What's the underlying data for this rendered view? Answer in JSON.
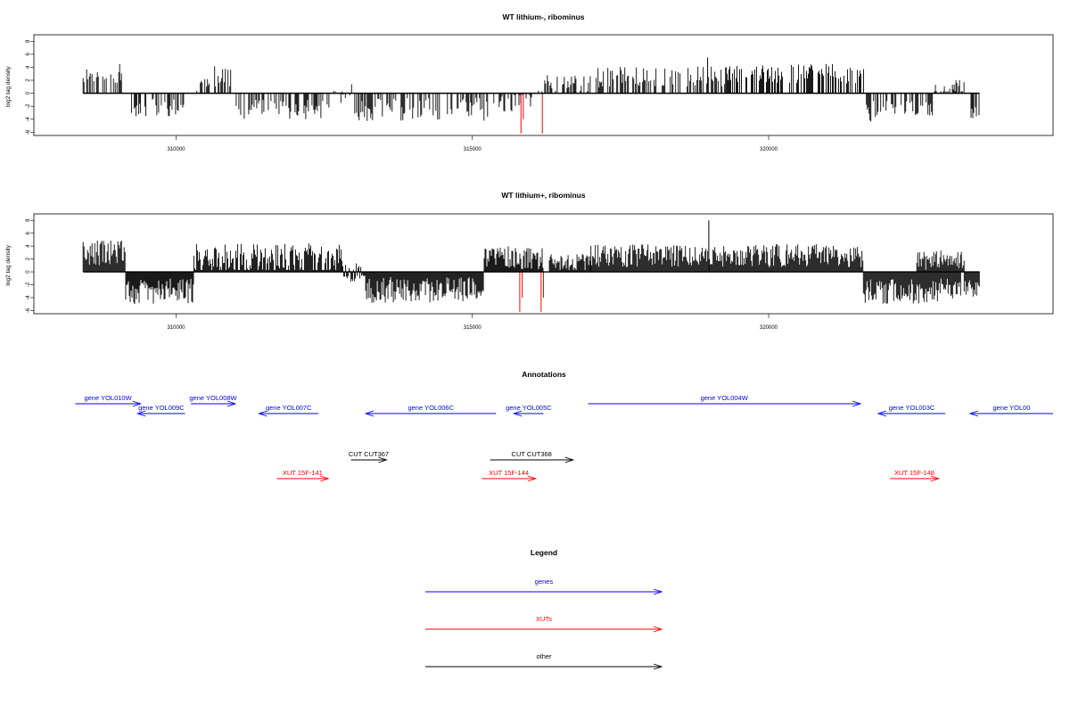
{
  "chart_data": [
    {
      "type": "bar",
      "title": "WT lithium-, ribominus",
      "xlabel": "",
      "ylabel": "log2 tag density",
      "xlim": [
        307600,
        324800
      ],
      "ylim": [
        -6.5,
        9
      ],
      "xticks": [
        310000,
        315000,
        320000
      ],
      "yticks": [
        -6,
        -4,
        -2,
        0,
        2,
        4,
        6,
        8
      ],
      "seed": 11,
      "density": 0.5,
      "segments": [
        {
          "from": 308430,
          "to": 309080,
          "mean": 3.0,
          "amp": 1.5
        },
        {
          "from": 309250,
          "to": 309500,
          "mean": -2.5,
          "amp": 1.5
        },
        {
          "from": 309600,
          "to": 310200,
          "mean": -2.2,
          "amp": 1.5
        },
        {
          "from": 310350,
          "to": 310600,
          "mean": 1.2,
          "amp": 1.0
        },
        {
          "from": 310650,
          "to": 311000,
          "mean": 3.0,
          "amp": 2.0
        },
        {
          "from": 311000,
          "to": 312600,
          "mean": -2.5,
          "amp": 1.5
        },
        {
          "from": 312600,
          "to": 313000,
          "mean": 0.0,
          "amp": 1.5
        },
        {
          "from": 313000,
          "to": 315500,
          "mean": -2.5,
          "amp": 1.8
        },
        {
          "from": 315500,
          "to": 316000,
          "mean": -1.5,
          "amp": 1.5
        },
        {
          "from": 316100,
          "to": 317000,
          "mean": 1.5,
          "amp": 1.5
        },
        {
          "from": 317000,
          "to": 319300,
          "mean": 2.5,
          "amp": 1.6
        },
        {
          "from": 319300,
          "to": 321650,
          "mean": 3.0,
          "amp": 1.5
        },
        {
          "from": 321650,
          "to": 322800,
          "mean": -2.8,
          "amp": 1.6
        },
        {
          "from": 322800,
          "to": 323300,
          "mean": 0.8,
          "amp": 1.3
        },
        {
          "from": 323400,
          "to": 323560,
          "mean": -3.0,
          "amp": 1.0
        }
      ],
      "highlights": [
        {
          "x": 315820,
          "y": -6.2,
          "color": "#ff0000"
        },
        {
          "x": 315860,
          "y": -4.0,
          "color": "#ff0000"
        },
        {
          "x": 316180,
          "y": -6.2,
          "color": "#ff0000"
        },
        {
          "x": 318970,
          "y": 5.5,
          "color": "#000000"
        }
      ]
    },
    {
      "type": "bar",
      "title": "WT lithium+, ribominus",
      "xlabel": "",
      "ylabel": "log2 tag density",
      "xlim": [
        307600,
        324800
      ],
      "ylim": [
        -6.5,
        9
      ],
      "xticks": [
        310000,
        315000,
        320000
      ],
      "yticks": [
        -6,
        -4,
        -2,
        0,
        2,
        4,
        6,
        8
      ],
      "seed": 29,
      "density": 1.0,
      "segments": [
        {
          "from": 308430,
          "to": 309150,
          "mean": 3.0,
          "amp": 2.0
        },
        {
          "from": 309150,
          "to": 310300,
          "mean": -3.0,
          "amp": 2.0
        },
        {
          "from": 310300,
          "to": 312800,
          "mean": 2.0,
          "amp": 2.4
        },
        {
          "from": 312800,
          "to": 313200,
          "mean": 0.0,
          "amp": 1.5
        },
        {
          "from": 313200,
          "to": 315200,
          "mean": -2.8,
          "amp": 2.0
        },
        {
          "from": 315200,
          "to": 316200,
          "mean": 2.2,
          "amp": 1.8
        },
        {
          "from": 316300,
          "to": 317000,
          "mean": 1.5,
          "amp": 1.5
        },
        {
          "from": 317000,
          "to": 321600,
          "mean": 2.5,
          "amp": 1.8
        },
        {
          "from": 321600,
          "to": 323250,
          "mean": -3.0,
          "amp": 2.0
        },
        {
          "from": 322500,
          "to": 323300,
          "mean": 1.8,
          "amp": 1.5
        },
        {
          "from": 323300,
          "to": 323560,
          "mean": -2.5,
          "amp": 1.5
        }
      ],
      "highlights": [
        {
          "x": 315800,
          "y": -6.2,
          "color": "#ff0000"
        },
        {
          "x": 315840,
          "y": -4.0,
          "color": "#ff0000"
        },
        {
          "x": 316160,
          "y": -6.2,
          "color": "#ff0000"
        },
        {
          "x": 316200,
          "y": -4.0,
          "color": "#ff0000"
        },
        {
          "x": 318990,
          "y": 8.0,
          "color": "#000000"
        }
      ]
    }
  ],
  "annotations": {
    "title": "Annotations",
    "colors": {
      "genes": "#0000ff",
      "XUTs": "#ff0000",
      "other": "#000000"
    },
    "features": [
      {
        "label": "gene YOL010W",
        "start": 308300,
        "end": 309400,
        "strand": "+",
        "type": "genes",
        "row": 0
      },
      {
        "label": "gene YOL009C",
        "start": 309350,
        "end": 310150,
        "strand": "-",
        "type": "genes",
        "row": 1
      },
      {
        "label": "gene YOL008W",
        "start": 310250,
        "end": 311000,
        "strand": "+",
        "type": "genes",
        "row": 0
      },
      {
        "label": "gene YOL007C",
        "start": 311400,
        "end": 312400,
        "strand": "-",
        "type": "genes",
        "row": 1
      },
      {
        "label": "gene YOL006C",
        "start": 313200,
        "end": 315400,
        "strand": "-",
        "type": "genes",
        "row": 1
      },
      {
        "label": "gene YOL005C",
        "start": 315700,
        "end": 316200,
        "strand": "-",
        "type": "genes",
        "row": 1
      },
      {
        "label": "gene YOL004W",
        "start": 316950,
        "end": 321550,
        "strand": "+",
        "type": "genes",
        "row": 0
      },
      {
        "label": "gene YOL003C",
        "start": 321850,
        "end": 322980,
        "strand": "-",
        "type": "genes",
        "row": 1
      },
      {
        "label": "gene YOL00",
        "start": 323400,
        "end": 324800,
        "strand": "-",
        "type": "genes",
        "row": 1
      },
      {
        "label": "CUT CUT367",
        "start": 312950,
        "end": 313550,
        "strand": "+",
        "type": "other",
        "row": 2
      },
      {
        "label": "CUT CUT368",
        "start": 315300,
        "end": 316700,
        "strand": "+",
        "type": "other",
        "row": 2
      },
      {
        "label": "XUT 15F-141",
        "start": 311700,
        "end": 312570,
        "strand": "+",
        "type": "XUTs",
        "row": 3
      },
      {
        "label": "XUT 15F-144",
        "start": 315160,
        "end": 316070,
        "strand": "+",
        "type": "XUTs",
        "row": 3
      },
      {
        "label": "XUT 15F-148",
        "start": 322050,
        "end": 322870,
        "strand": "+",
        "type": "XUTs",
        "row": 3
      }
    ]
  },
  "legend": {
    "title": "Legend",
    "items": [
      {
        "label": "genes",
        "color": "#0000ff"
      },
      {
        "label": "XUTs",
        "color": "#ff0000"
      },
      {
        "label": "other",
        "color": "#000000"
      }
    ]
  }
}
